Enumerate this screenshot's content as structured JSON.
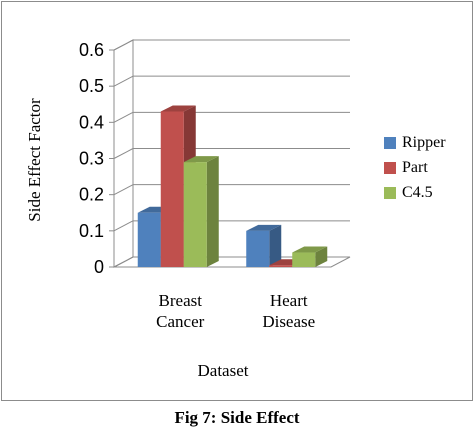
{
  "chart_data": {
    "type": "bar",
    "title": "",
    "xlabel": "Dataset",
    "ylabel": "Side Effect Factor",
    "ylim": [
      0,
      0.6
    ],
    "yticks": [
      "0",
      "0.1",
      "0.2",
      "0.3",
      "0.4",
      "0.5",
      "0.6"
    ],
    "categories": [
      [
        "Breast",
        "Cancer"
      ],
      [
        "Heart",
        "Disease"
      ]
    ],
    "series": [
      {
        "name": "Ripper",
        "values": [
          0.15,
          0.1
        ],
        "color": "#4f81bd"
      },
      {
        "name": "Part",
        "values": [
          0.43,
          0.005
        ],
        "color": "#c0504d"
      },
      {
        "name": "C4.5",
        "values": [
          0.29,
          0.04
        ],
        "color": "#9bbb59"
      }
    ],
    "legend_position": "right",
    "grid": true,
    "style": "3d-clustered-column"
  },
  "caption": "Fig 7: Side Effect"
}
